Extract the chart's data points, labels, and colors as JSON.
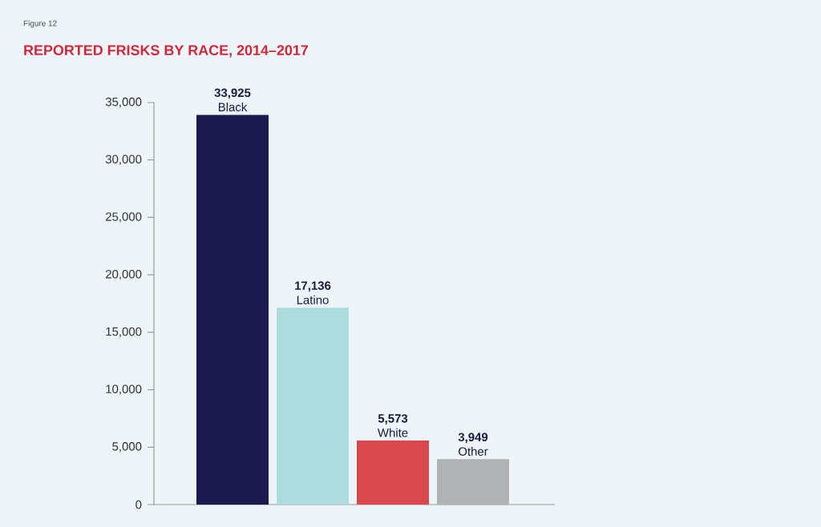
{
  "chart_data": {
    "type": "bar",
    "title": "REPORTED FRISKS BY RACE, 2014–2017",
    "annotations": [
      "Figure 12"
    ],
    "categories": [
      "Black",
      "Latino",
      "White",
      "Other"
    ],
    "values": [
      33925,
      17136,
      5573,
      3949
    ],
    "value_labels": [
      "33,925",
      "17,136",
      "5,573",
      "3,949"
    ],
    "colors": [
      "#1c1a4f",
      "#addcdf",
      "#d9474f",
      "#b1b2b4"
    ],
    "ylim": [
      0,
      35000
    ],
    "yticks": [
      {
        "value": 0,
        "label": "0"
      },
      {
        "value": 5000,
        "label": "5,000"
      },
      {
        "value": 10000,
        "label": "10,000"
      },
      {
        "value": 15000,
        "label": "15,000"
      },
      {
        "value": 20000,
        "label": "20,000"
      },
      {
        "value": 25000,
        "label": "25,000"
      },
      {
        "value": 30000,
        "label": "30,000"
      },
      {
        "value": 35000,
        "label": "35,000"
      }
    ],
    "grid": false
  }
}
